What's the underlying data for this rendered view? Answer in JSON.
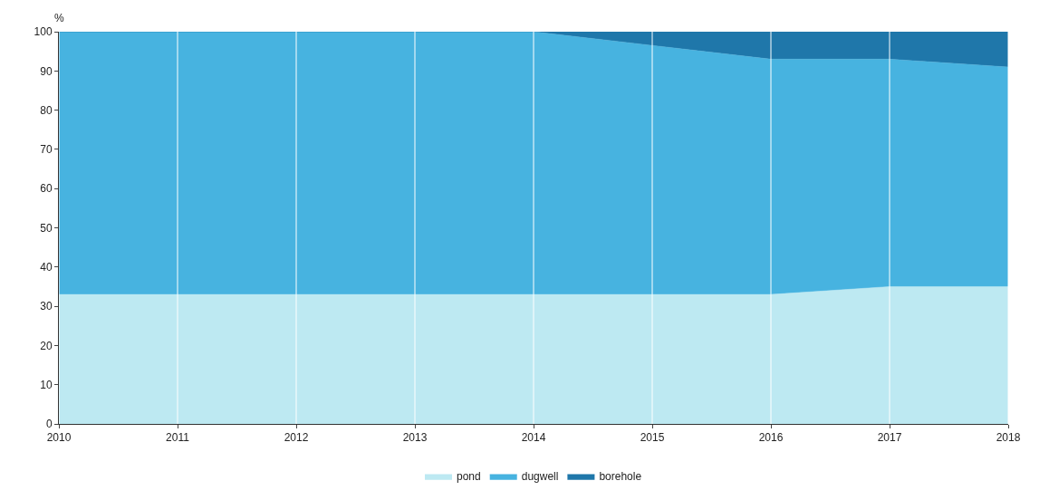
{
  "chart_data": {
    "type": "area",
    "stacked": true,
    "ylabel": "%",
    "x": [
      2010,
      2011,
      2012,
      2013,
      2014,
      2015,
      2016,
      2017,
      2018
    ],
    "series": [
      {
        "name": "pond",
        "color": "#bde9f2",
        "values": [
          33,
          33,
          33,
          33,
          33,
          33,
          33,
          35,
          35
        ]
      },
      {
        "name": "dugwell",
        "color": "#47b3e0",
        "values": [
          67,
          67,
          67,
          67,
          67,
          63.5,
          60,
          58,
          56
        ]
      },
      {
        "name": "borehole",
        "color": "#1f77aa",
        "values": [
          0,
          0,
          0,
          0,
          0,
          3.5,
          7,
          7,
          9
        ]
      }
    ],
    "xlim": [
      2010,
      2018
    ],
    "xticks": [
      2010,
      2011,
      2012,
      2013,
      2014,
      2015,
      2016,
      2017,
      2018
    ],
    "ylim": [
      0,
      100
    ],
    "yticks": [
      0,
      10,
      20,
      30,
      40,
      50,
      60,
      70,
      80,
      90,
      100
    ],
    "grid": "x",
    "legend": "bottom"
  }
}
